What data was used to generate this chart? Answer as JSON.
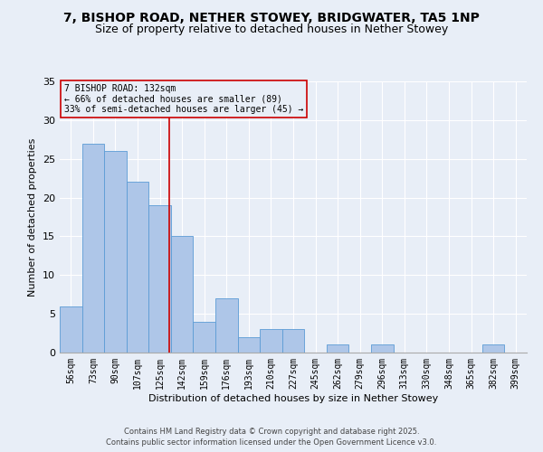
{
  "title1": "7, BISHOP ROAD, NETHER STOWEY, BRIDGWATER, TA5 1NP",
  "title2": "Size of property relative to detached houses in Nether Stowey",
  "xlabel": "Distribution of detached houses by size in Nether Stowey",
  "ylabel": "Number of detached properties",
  "categories": [
    "56sqm",
    "73sqm",
    "90sqm",
    "107sqm",
    "125sqm",
    "142sqm",
    "159sqm",
    "176sqm",
    "193sqm",
    "210sqm",
    "227sqm",
    "245sqm",
    "262sqm",
    "279sqm",
    "296sqm",
    "313sqm",
    "330sqm",
    "348sqm",
    "365sqm",
    "382sqm",
    "399sqm"
  ],
  "values": [
    6,
    27,
    26,
    22,
    19,
    15,
    4,
    7,
    2,
    3,
    3,
    0,
    1,
    0,
    1,
    0,
    0,
    0,
    0,
    1,
    0
  ],
  "bar_color": "#aec6e8",
  "bar_edge_color": "#5b9bd5",
  "background_color": "#e8eef7",
  "red_line_color": "#cc0000",
  "annotation_text_line1": "7 BISHOP ROAD: 132sqm",
  "annotation_text_line2": "← 66% of detached houses are smaller (89)",
  "annotation_text_line3": "33% of semi-detached houses are larger (45) →",
  "ylim": [
    0,
    35
  ],
  "yticks": [
    0,
    5,
    10,
    15,
    20,
    25,
    30,
    35
  ],
  "footnote1": "Contains HM Land Registry data © Crown copyright and database right 2025.",
  "footnote2": "Contains public sector information licensed under the Open Government Licence v3.0.",
  "title_fontsize": 10,
  "subtitle_fontsize": 9,
  "axis_label_fontsize": 8,
  "tick_fontsize": 7,
  "annotation_fontsize": 7,
  "footnote_fontsize": 6
}
